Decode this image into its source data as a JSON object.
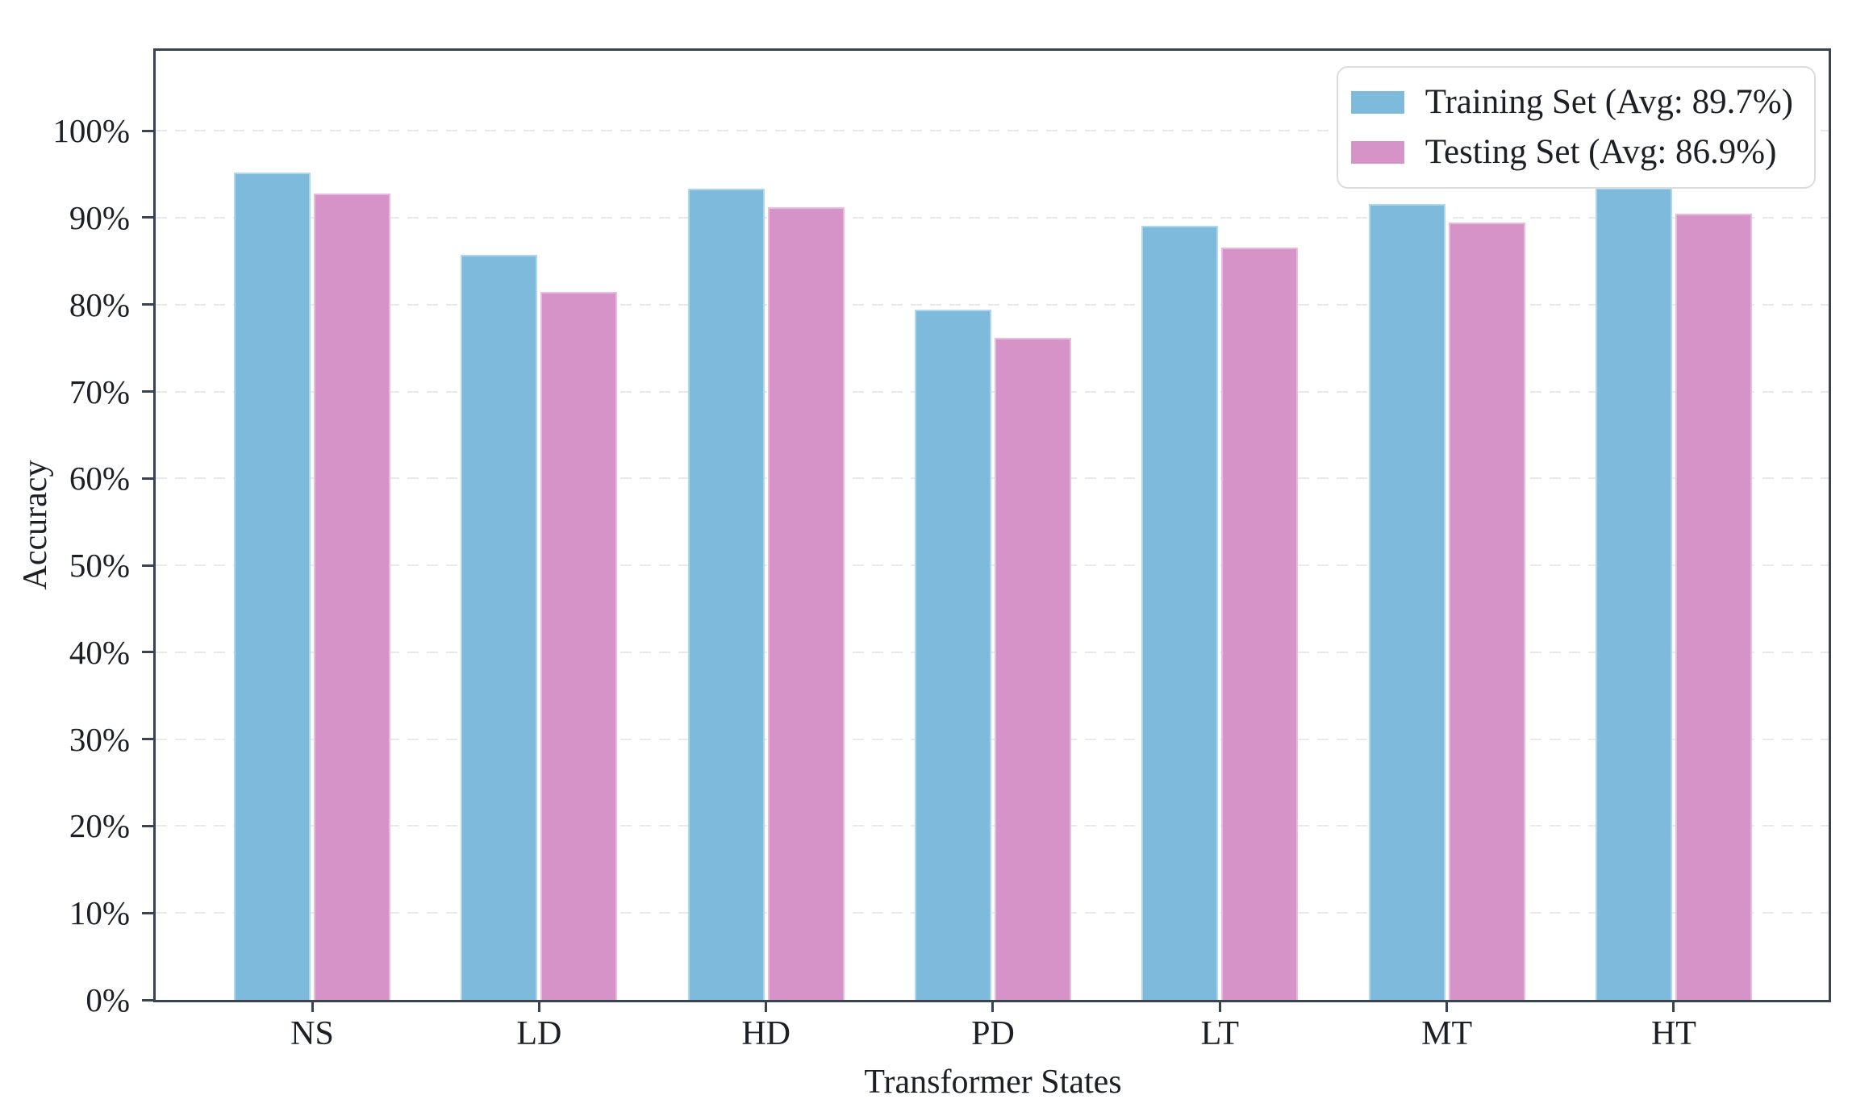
{
  "chart_data": {
    "type": "bar",
    "title": "",
    "categories": [
      "NS",
      "LD",
      "HD",
      "PD",
      "LT",
      "MT",
      "HT"
    ],
    "series": [
      {
        "name": "Training Set (Avg: 89.7%)",
        "color": "#7EBADC",
        "edge_color": "#AFD6EA",
        "values": [
          95.2,
          85.7,
          93.3,
          79.4,
          89.1,
          91.6,
          93.4
        ]
      },
      {
        "name": "Testing Set (Avg: 86.9%)",
        "color": "#D693C8",
        "edge_color": "#E8BCDC",
        "values": [
          92.8,
          81.5,
          91.2,
          76.2,
          86.6,
          89.4,
          90.5
        ]
      }
    ],
    "xlabel": "Transformer States",
    "ylabel": "Accuracy",
    "ylim": [
      0,
      109.2
    ],
    "yticks": [
      0,
      10,
      20,
      30,
      40,
      50,
      60,
      70,
      80,
      90,
      100
    ],
    "ytick_suffix": "%",
    "grid": "horizontal-dashed",
    "legend_position": "upper-right",
    "axis_color": "#3A4350",
    "grid_color": "#E9E9EC",
    "text_color": "#1C2025"
  }
}
